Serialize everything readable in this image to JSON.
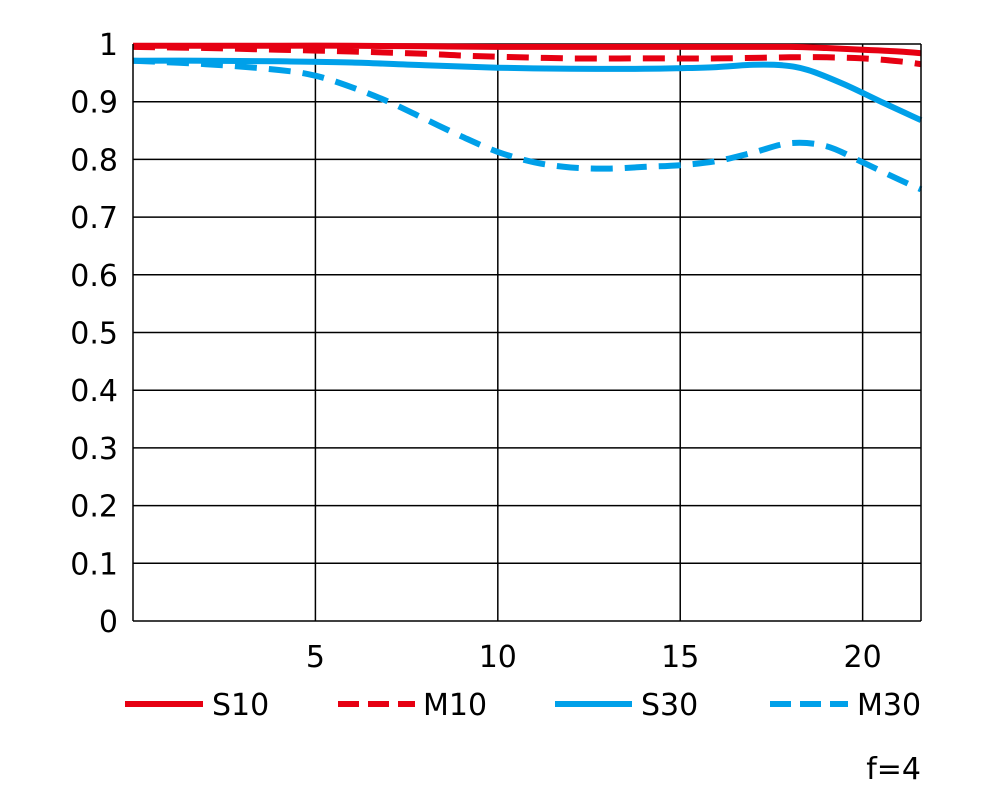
{
  "chart_data": {
    "type": "line",
    "xlim": [
      0,
      21.6
    ],
    "ylim": [
      0,
      1
    ],
    "x_ticks": [
      5,
      10,
      15,
      20
    ],
    "y_ticks": [
      0,
      0.1,
      0.2,
      0.3,
      0.4,
      0.5,
      0.6,
      0.7,
      0.8,
      0.9,
      1
    ],
    "y_tick_labels": [
      "0",
      "0.1",
      "0.2",
      "0.3",
      "0.4",
      "0.5",
      "0.6",
      "0.7",
      "0.8",
      "0.9",
      "1"
    ],
    "grid": true,
    "legend_position": "bottom",
    "note": "f=4",
    "series": [
      {
        "name": "S10",
        "color": "#e60012",
        "style": "solid",
        "x": [
          0,
          2,
          4,
          6,
          8,
          10,
          12,
          14,
          16,
          18,
          19,
          20,
          21,
          21.6
        ],
        "y": [
          0.997,
          0.997,
          0.997,
          0.997,
          0.996,
          0.995,
          0.995,
          0.995,
          0.995,
          0.995,
          0.993,
          0.99,
          0.987,
          0.984
        ]
      },
      {
        "name": "M10",
        "color": "#e60012",
        "style": "dashed",
        "x": [
          0,
          2,
          4,
          6,
          8,
          9,
          10,
          12,
          14,
          16,
          18,
          19,
          20,
          21,
          21.6
        ],
        "y": [
          0.995,
          0.993,
          0.99,
          0.987,
          0.983,
          0.98,
          0.978,
          0.975,
          0.975,
          0.975,
          0.977,
          0.977,
          0.975,
          0.97,
          0.965
        ]
      },
      {
        "name": "S30",
        "color": "#00a0e9",
        "style": "solid",
        "x": [
          0,
          2,
          4,
          6,
          8,
          10,
          12,
          14,
          15,
          16,
          17,
          17.8,
          18.5,
          19.5,
          20.5,
          21.6
        ],
        "y": [
          0.971,
          0.971,
          0.97,
          0.968,
          0.963,
          0.959,
          0.957,
          0.957,
          0.958,
          0.96,
          0.964,
          0.963,
          0.955,
          0.93,
          0.9,
          0.868
        ]
      },
      {
        "name": "M30",
        "color": "#00a0e9",
        "style": "dashed",
        "x": [
          0,
          2,
          4,
          5,
          6,
          7,
          8,
          9,
          10,
          11,
          12,
          13,
          14,
          15,
          16,
          17,
          18,
          19,
          20,
          21,
          21.6
        ],
        "y": [
          0.971,
          0.965,
          0.955,
          0.945,
          0.925,
          0.9,
          0.87,
          0.84,
          0.813,
          0.795,
          0.786,
          0.784,
          0.787,
          0.79,
          0.797,
          0.812,
          0.828,
          0.823,
          0.795,
          0.765,
          0.748
        ]
      }
    ]
  }
}
